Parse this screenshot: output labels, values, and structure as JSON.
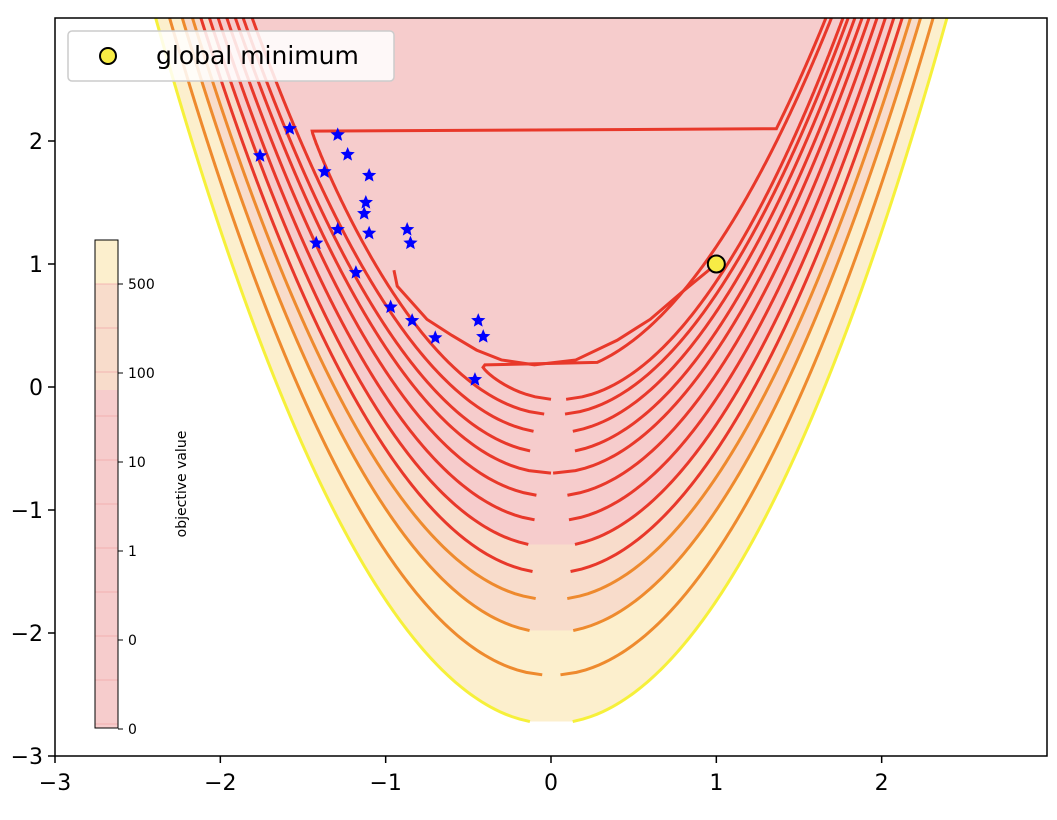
{
  "chart_data": {
    "type": "contour",
    "function": "rosenbrock",
    "xlim": [
      -3,
      3
    ],
    "ylim": [
      -3,
      3
    ],
    "x_ticks": [
      "−3",
      "−2",
      "−1",
      "0",
      "1",
      "2"
    ],
    "y_ticks": [
      "−3",
      "−2",
      "−1",
      "0",
      "1",
      "2"
    ],
    "grid": false,
    "legend": {
      "placement": "upper-left",
      "entries": [
        {
          "label": "global minimum",
          "marker": "circle",
          "color": "#f7ec45"
        }
      ]
    },
    "global_minimum": {
      "x": 1,
      "y": 1
    },
    "samples": {
      "marker": "star",
      "color": "#0000ff",
      "points": [
        {
          "x": -1.76,
          "y": 1.88
        },
        {
          "x": -1.58,
          "y": 2.1
        },
        {
          "x": -1.29,
          "y": 2.05
        },
        {
          "x": -1.23,
          "y": 1.89
        },
        {
          "x": -1.37,
          "y": 1.75
        },
        {
          "x": -1.1,
          "y": 1.72
        },
        {
          "x": -1.12,
          "y": 1.5
        },
        {
          "x": -1.13,
          "y": 1.41
        },
        {
          "x": -1.29,
          "y": 1.28
        },
        {
          "x": -1.1,
          "y": 1.25
        },
        {
          "x": -1.42,
          "y": 1.17
        },
        {
          "x": -0.87,
          "y": 1.28
        },
        {
          "x": -0.85,
          "y": 1.17
        },
        {
          "x": -1.18,
          "y": 0.93
        },
        {
          "x": -0.97,
          "y": 0.65
        },
        {
          "x": -0.84,
          "y": 0.54
        },
        {
          "x": -0.7,
          "y": 0.4
        },
        {
          "x": -0.44,
          "y": 0.54
        },
        {
          "x": -0.41,
          "y": 0.41
        },
        {
          "x": -0.46,
          "y": 0.06
        }
      ]
    },
    "contour_levels": [
      2,
      6,
      15,
      30,
      50,
      80,
      120,
      170,
      230,
      300,
      400,
      550,
      750
    ],
    "colorbar": {
      "label": "objective value",
      "tick_labels": [
        "500",
        "100",
        "10",
        "1",
        "0",
        "0"
      ],
      "colors": {
        "low": "#f6cccc",
        "mid": "#f8dccb",
        "high": "#fcefcd"
      }
    },
    "colors": {
      "fill_low": "#f6cccc",
      "fill_mid": "#f8dccb",
      "fill_high": "#fcefcd",
      "line_low": "#e8382a",
      "line_mid": "#ee8a2e",
      "line_high": "#f6f03a",
      "path": "#e8382a",
      "minimum_marker": "#f7ec45",
      "star": "#0000ff"
    }
  }
}
